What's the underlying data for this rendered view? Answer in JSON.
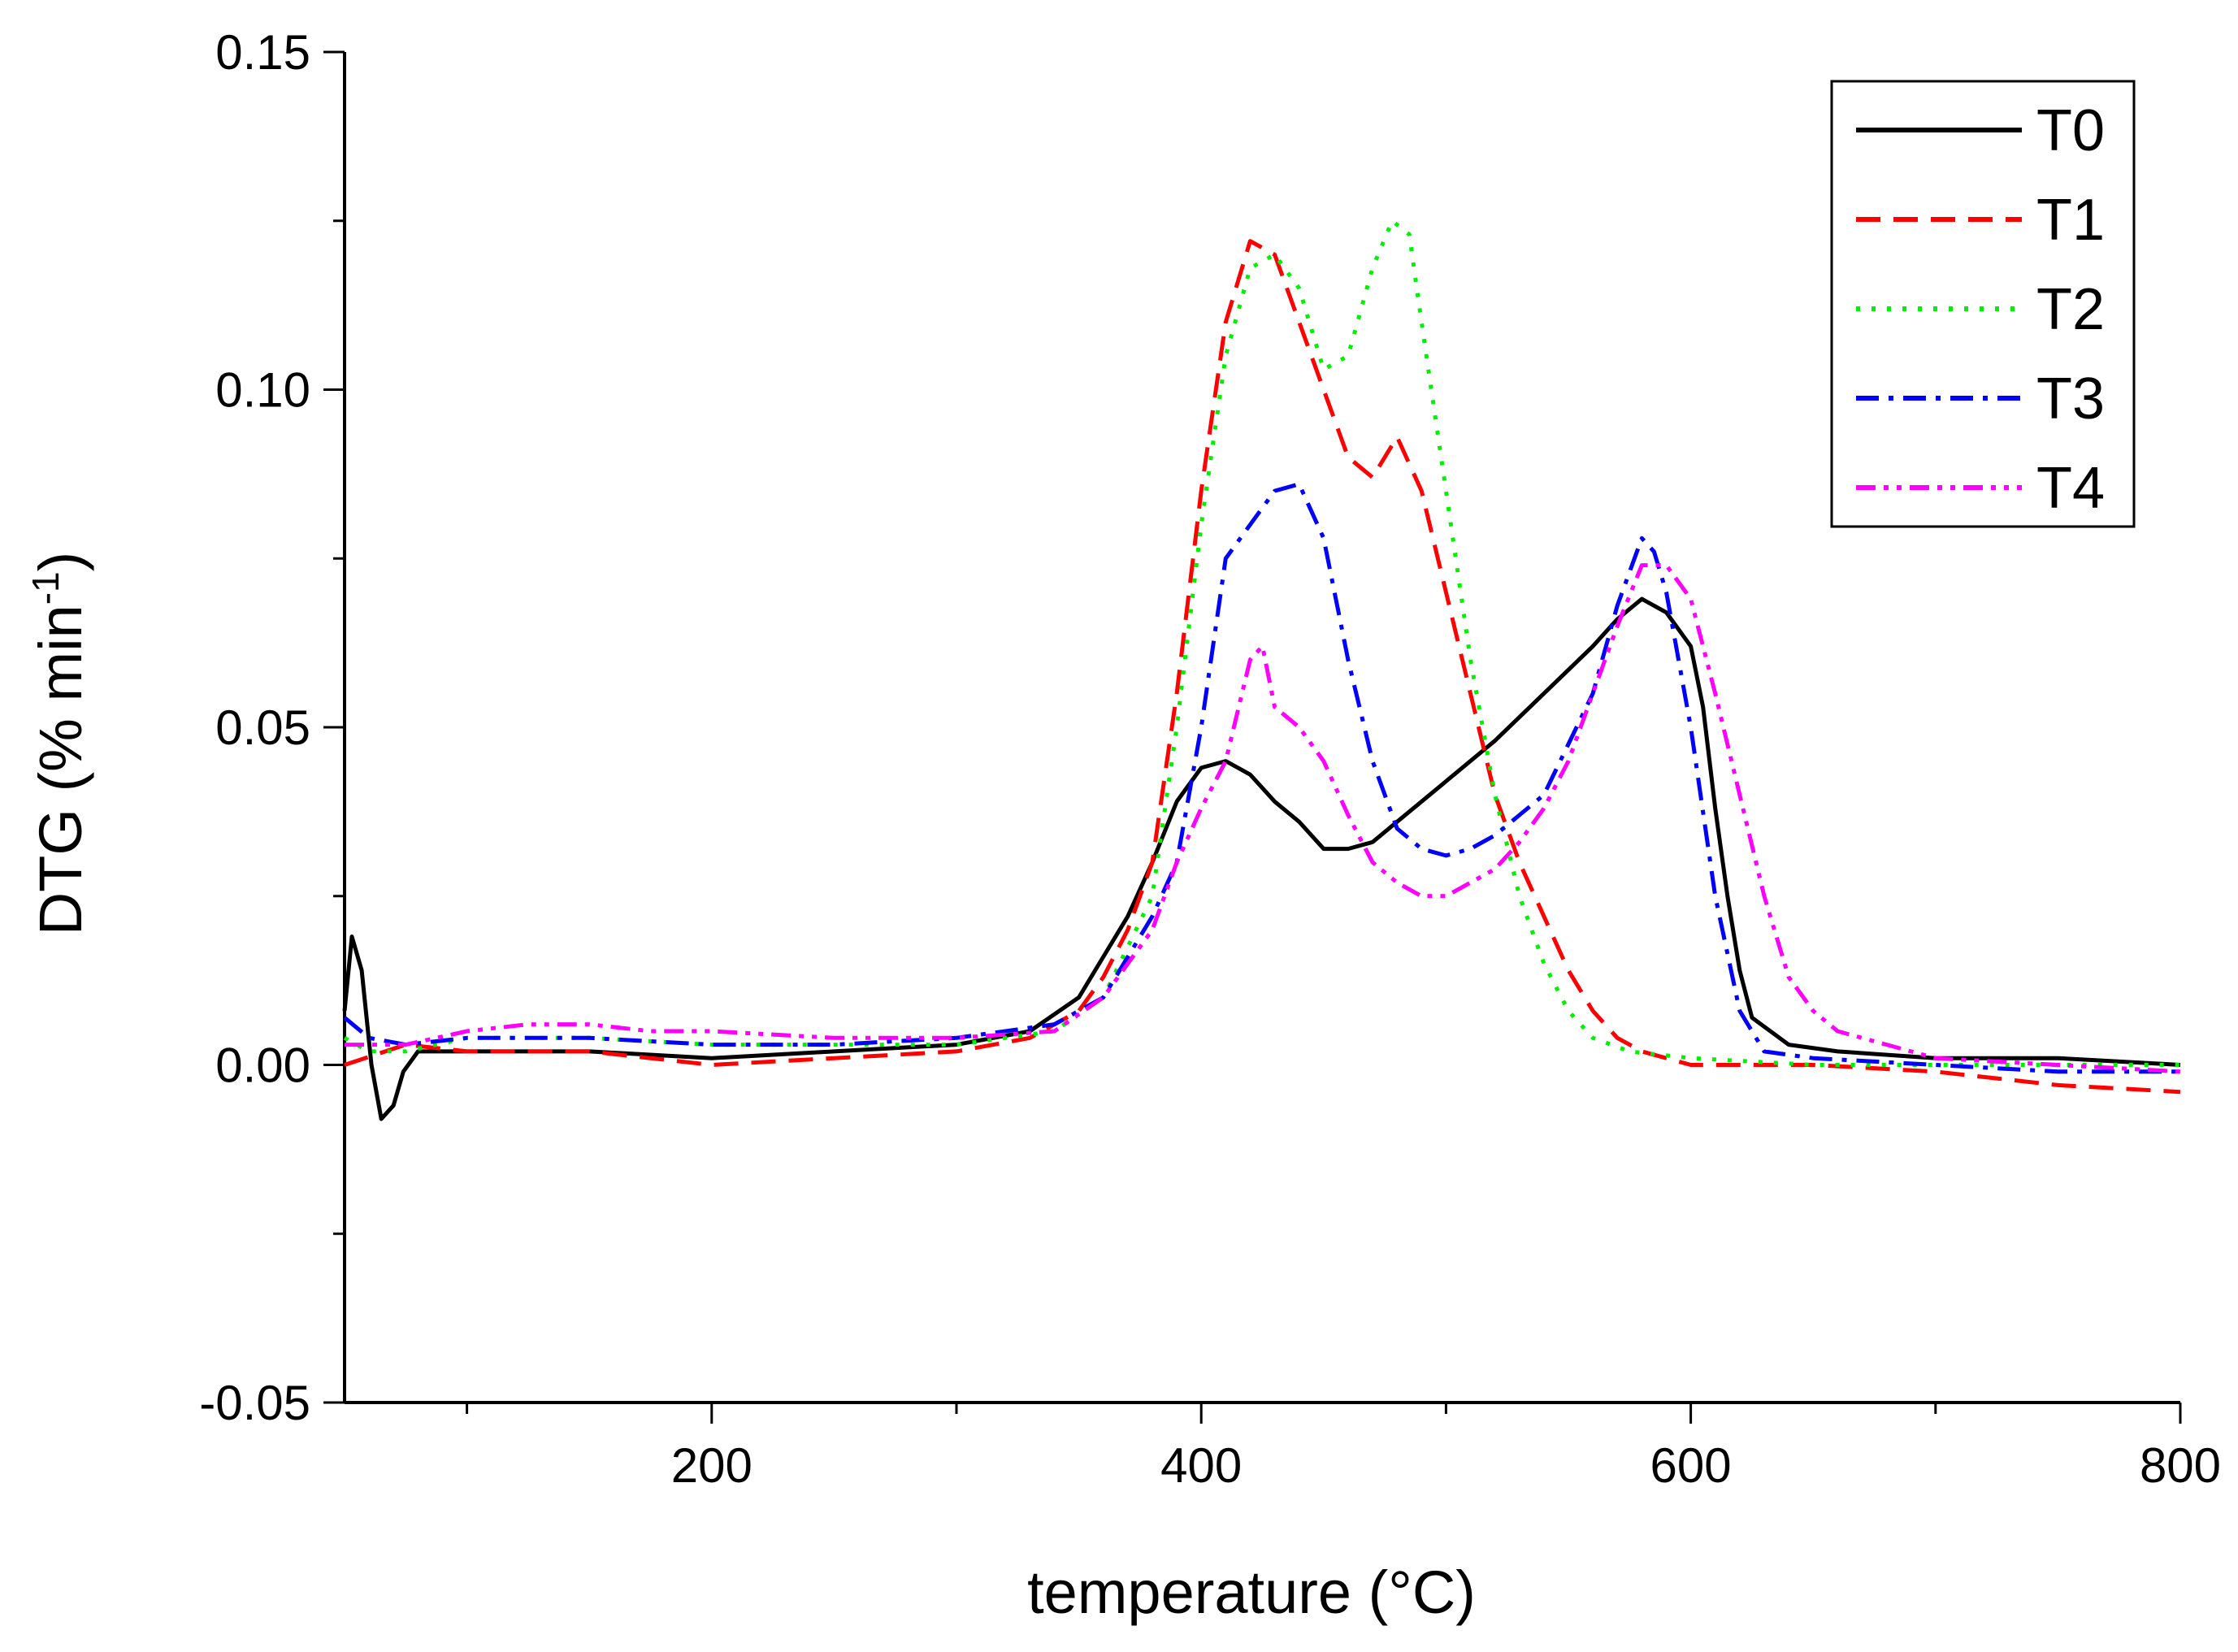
{
  "chart_data": {
    "type": "line",
    "title": "",
    "xlabel": "temperature (°C)",
    "ylabel": "DTG (% min",
    "ylabel_sup": "-1",
    "ylabel_close": ")",
    "xlim": [
      50,
      800
    ],
    "ylim": [
      -0.05,
      0.15
    ],
    "xticks": [
      200,
      400,
      600,
      800
    ],
    "xtick_labels": [
      "200",
      "400",
      "600",
      "800"
    ],
    "yticks": [
      -0.05,
      0.0,
      0.05,
      0.1,
      0.15
    ],
    "ytick_labels": [
      "-0.05",
      "0.00",
      "0.05",
      "0.10",
      "0.15"
    ],
    "legend_position": "top-right",
    "grid": false,
    "series": [
      {
        "name": "T0",
        "color": "#000000",
        "dash": "solid",
        "points": [
          [
            50,
            0.008
          ],
          [
            53,
            0.019
          ],
          [
            57,
            0.014
          ],
          [
            61,
            0.0
          ],
          [
            65,
            -0.008
          ],
          [
            70,
            -0.006
          ],
          [
            74,
            -0.001
          ],
          [
            80,
            0.002
          ],
          [
            100,
            0.002
          ],
          [
            150,
            0.002
          ],
          [
            200,
            0.001
          ],
          [
            250,
            0.002
          ],
          [
            300,
            0.003
          ],
          [
            330,
            0.005
          ],
          [
            350,
            0.01
          ],
          [
            360,
            0.016
          ],
          [
            370,
            0.022
          ],
          [
            380,
            0.03
          ],
          [
            390,
            0.039
          ],
          [
            400,
            0.044
          ],
          [
            410,
            0.045
          ],
          [
            420,
            0.043
          ],
          [
            430,
            0.039
          ],
          [
            440,
            0.036
          ],
          [
            450,
            0.032
          ],
          [
            460,
            0.032
          ],
          [
            470,
            0.033
          ],
          [
            480,
            0.036
          ],
          [
            490,
            0.039
          ],
          [
            500,
            0.042
          ],
          [
            520,
            0.048
          ],
          [
            540,
            0.055
          ],
          [
            560,
            0.062
          ],
          [
            570,
            0.066
          ],
          [
            580,
            0.069
          ],
          [
            590,
            0.067
          ],
          [
            600,
            0.062
          ],
          [
            605,
            0.053
          ],
          [
            610,
            0.038
          ],
          [
            615,
            0.025
          ],
          [
            620,
            0.014
          ],
          [
            625,
            0.007
          ],
          [
            640,
            0.003
          ],
          [
            660,
            0.002
          ],
          [
            700,
            0.001
          ],
          [
            750,
            0.001
          ],
          [
            800,
            0.0
          ]
        ]
      },
      {
        "name": "T1",
        "color": "#ff0000",
        "dash": "long-dash",
        "points": [
          [
            50,
            0.0
          ],
          [
            75,
            0.003
          ],
          [
            100,
            0.002
          ],
          [
            150,
            0.002
          ],
          [
            200,
            0.0
          ],
          [
            250,
            0.001
          ],
          [
            300,
            0.002
          ],
          [
            330,
            0.004
          ],
          [
            350,
            0.008
          ],
          [
            360,
            0.013
          ],
          [
            370,
            0.02
          ],
          [
            380,
            0.03
          ],
          [
            390,
            0.055
          ],
          [
            400,
            0.085
          ],
          [
            410,
            0.11
          ],
          [
            420,
            0.122
          ],
          [
            430,
            0.12
          ],
          [
            440,
            0.11
          ],
          [
            450,
            0.1
          ],
          [
            460,
            0.09
          ],
          [
            470,
            0.087
          ],
          [
            480,
            0.093
          ],
          [
            490,
            0.085
          ],
          [
            500,
            0.07
          ],
          [
            510,
            0.055
          ],
          [
            520,
            0.04
          ],
          [
            530,
            0.03
          ],
          [
            540,
            0.022
          ],
          [
            550,
            0.014
          ],
          [
            560,
            0.008
          ],
          [
            570,
            0.004
          ],
          [
            580,
            0.002
          ],
          [
            600,
            0.0
          ],
          [
            650,
            0.0
          ],
          [
            700,
            -0.001
          ],
          [
            750,
            -0.003
          ],
          [
            800,
            -0.004
          ]
        ]
      },
      {
        "name": "T2",
        "color": "#00ee00",
        "dash": "dot",
        "points": [
          [
            50,
            0.004
          ],
          [
            60,
            0.002
          ],
          [
            75,
            0.002
          ],
          [
            100,
            0.004
          ],
          [
            150,
            0.004
          ],
          [
            200,
            0.003
          ],
          [
            250,
            0.003
          ],
          [
            300,
            0.003
          ],
          [
            340,
            0.005
          ],
          [
            360,
            0.01
          ],
          [
            380,
            0.025
          ],
          [
            390,
            0.05
          ],
          [
            400,
            0.08
          ],
          [
            410,
            0.105
          ],
          [
            420,
            0.118
          ],
          [
            430,
            0.12
          ],
          [
            440,
            0.115
          ],
          [
            450,
            0.103
          ],
          [
            460,
            0.105
          ],
          [
            470,
            0.118
          ],
          [
            478,
            0.125
          ],
          [
            485,
            0.123
          ],
          [
            490,
            0.11
          ],
          [
            500,
            0.085
          ],
          [
            510,
            0.06
          ],
          [
            520,
            0.04
          ],
          [
            530,
            0.025
          ],
          [
            540,
            0.015
          ],
          [
            550,
            0.008
          ],
          [
            560,
            0.004
          ],
          [
            575,
            0.002
          ],
          [
            600,
            0.001
          ],
          [
            650,
            0.0
          ],
          [
            700,
            0.0
          ],
          [
            750,
            0.0
          ],
          [
            800,
            0.0
          ]
        ]
      },
      {
        "name": "T3",
        "color": "#0000ff",
        "dash": "dash-dot",
        "points": [
          [
            50,
            0.007
          ],
          [
            60,
            0.004
          ],
          [
            75,
            0.003
          ],
          [
            100,
            0.004
          ],
          [
            150,
            0.004
          ],
          [
            200,
            0.003
          ],
          [
            250,
            0.003
          ],
          [
            300,
            0.004
          ],
          [
            340,
            0.006
          ],
          [
            360,
            0.01
          ],
          [
            380,
            0.022
          ],
          [
            390,
            0.03
          ],
          [
            400,
            0.05
          ],
          [
            410,
            0.075
          ],
          [
            420,
            0.08
          ],
          [
            430,
            0.085
          ],
          [
            440,
            0.086
          ],
          [
            450,
            0.078
          ],
          [
            460,
            0.06
          ],
          [
            470,
            0.045
          ],
          [
            480,
            0.035
          ],
          [
            490,
            0.032
          ],
          [
            500,
            0.031
          ],
          [
            510,
            0.032
          ],
          [
            520,
            0.034
          ],
          [
            530,
            0.037
          ],
          [
            540,
            0.04
          ],
          [
            560,
            0.055
          ],
          [
            570,
            0.068
          ],
          [
            580,
            0.078
          ],
          [
            585,
            0.076
          ],
          [
            590,
            0.07
          ],
          [
            600,
            0.05
          ],
          [
            610,
            0.025
          ],
          [
            620,
            0.008
          ],
          [
            630,
            0.002
          ],
          [
            650,
            0.001
          ],
          [
            700,
            0.0
          ],
          [
            750,
            -0.001
          ],
          [
            800,
            -0.001
          ]
        ]
      },
      {
        "name": "T4",
        "color": "#ff00ff",
        "dash": "dash-dot-dot",
        "points": [
          [
            50,
            0.003
          ],
          [
            75,
            0.003
          ],
          [
            100,
            0.005
          ],
          [
            125,
            0.006
          ],
          [
            150,
            0.006
          ],
          [
            175,
            0.005
          ],
          [
            200,
            0.005
          ],
          [
            250,
            0.004
          ],
          [
            300,
            0.004
          ],
          [
            340,
            0.005
          ],
          [
            360,
            0.01
          ],
          [
            380,
            0.02
          ],
          [
            390,
            0.03
          ],
          [
            400,
            0.038
          ],
          [
            410,
            0.045
          ],
          [
            420,
            0.06
          ],
          [
            425,
            0.062
          ],
          [
            430,
            0.053
          ],
          [
            440,
            0.05
          ],
          [
            450,
            0.045
          ],
          [
            460,
            0.037
          ],
          [
            470,
            0.03
          ],
          [
            480,
            0.027
          ],
          [
            490,
            0.025
          ],
          [
            500,
            0.025
          ],
          [
            510,
            0.027
          ],
          [
            520,
            0.029
          ],
          [
            530,
            0.033
          ],
          [
            540,
            0.038
          ],
          [
            550,
            0.045
          ],
          [
            560,
            0.055
          ],
          [
            570,
            0.065
          ],
          [
            580,
            0.074
          ],
          [
            590,
            0.074
          ],
          [
            600,
            0.069
          ],
          [
            610,
            0.055
          ],
          [
            620,
            0.04
          ],
          [
            630,
            0.025
          ],
          [
            640,
            0.013
          ],
          [
            650,
            0.008
          ],
          [
            660,
            0.005
          ],
          [
            700,
            0.001
          ],
          [
            750,
            0.0
          ],
          [
            800,
            -0.001
          ]
        ]
      }
    ]
  }
}
